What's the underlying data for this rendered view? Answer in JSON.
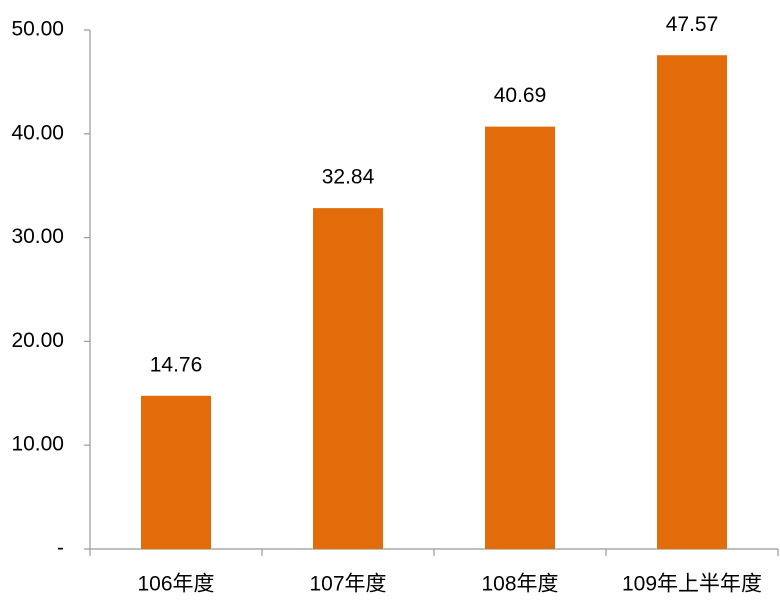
{
  "chart_data": {
    "type": "bar",
    "categories": [
      "106年度",
      "107年度",
      "108年度",
      "109年上半年度"
    ],
    "values": [
      14.76,
      32.84,
      40.69,
      47.57
    ],
    "color": "#e36c0a",
    "ylim": [
      0,
      50
    ],
    "yticks": [
      {
        "value": 0,
        "label": "-"
      },
      {
        "value": 10,
        "label": "10.00"
      },
      {
        "value": 20,
        "label": "20.00"
      },
      {
        "value": 30,
        "label": "30.00"
      },
      {
        "value": 40,
        "label": "40.00"
      },
      {
        "value": 50,
        "label": "50.00"
      }
    ],
    "grid": false
  }
}
